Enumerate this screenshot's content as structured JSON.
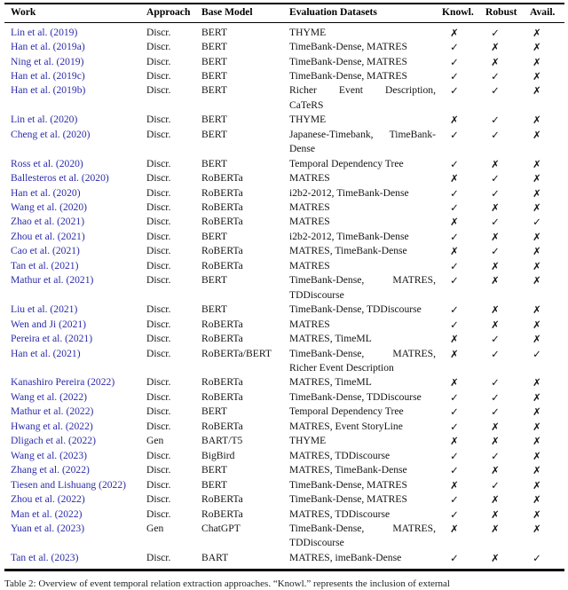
{
  "colors": {
    "link_blue": "#2b2baa"
  },
  "table": {
    "headers": [
      "Work",
      "Approach",
      "Base Model",
      "Evaluation Datasets",
      "Knowl.",
      "Robust",
      "Avail."
    ],
    "rows": [
      {
        "work": "Lin et al. (2019)",
        "approach": "Discr.",
        "base_model": "BERT",
        "dataset_lines": [
          "THYME"
        ],
        "knowl": "✗",
        "robust": "✓",
        "avail": "✗"
      },
      {
        "work": "Han et al. (2019a)",
        "approach": "Discr.",
        "base_model": "BERT",
        "dataset_lines": [
          "TimeBank-Dense, MATRES"
        ],
        "knowl": "✓",
        "robust": "✗",
        "avail": "✗"
      },
      {
        "work": "Ning et al. (2019)",
        "approach": "Discr.",
        "base_model": "BERT",
        "dataset_lines": [
          "TimeBank-Dense, MATRES"
        ],
        "knowl": "✓",
        "robust": "✗",
        "avail": "✗"
      },
      {
        "work": "Han et al. (2019c)",
        "approach": "Discr.",
        "base_model": "BERT",
        "dataset_lines": [
          "TimeBank-Dense, MATRES"
        ],
        "knowl": "✓",
        "robust": "✓",
        "avail": "✗"
      },
      {
        "work": "Han et al. (2019b)",
        "approach": "Discr.",
        "base_model": "BERT",
        "dataset_lines": [
          "Richer Event Description,",
          "CaTeRS"
        ],
        "knowl": "✓",
        "robust": "✓",
        "avail": "✗"
      },
      {
        "work": "Lin et al. (2020)",
        "approach": "Discr.",
        "base_model": "BERT",
        "dataset_lines": [
          "THYME"
        ],
        "knowl": "✗",
        "robust": "✓",
        "avail": "✗"
      },
      {
        "work": "Cheng et al. (2020)",
        "approach": "Discr.",
        "base_model": "BERT",
        "dataset_lines": [
          "Japanese-Timebank, TimeBank-",
          "Dense"
        ],
        "knowl": "✓",
        "robust": "✓",
        "avail": "✗"
      },
      {
        "work": "Ross et al. (2020)",
        "approach": "Discr.",
        "base_model": "BERT",
        "dataset_lines": [
          "Temporal Dependency Tree"
        ],
        "knowl": "✓",
        "robust": "✗",
        "avail": "✗"
      },
      {
        "work": "Ballesteros et al. (2020)",
        "approach": "Discr.",
        "base_model": "RoBERTa",
        "dataset_lines": [
          "MATRES"
        ],
        "knowl": "✗",
        "robust": "✓",
        "avail": "✗"
      },
      {
        "work": "Han et al. (2020)",
        "approach": "Discr.",
        "base_model": "RoBERTa",
        "dataset_lines": [
          "i2b2-2012, TimeBank-Dense"
        ],
        "knowl": "✓",
        "robust": "✓",
        "avail": "✗"
      },
      {
        "work": "Wang et al. (2020)",
        "approach": "Discr.",
        "base_model": "RoBERTa",
        "dataset_lines": [
          "MATRES"
        ],
        "knowl": "✓",
        "robust": "✗",
        "avail": "✗"
      },
      {
        "work": "Zhao et al. (2021)",
        "approach": "Discr.",
        "base_model": "RoBERTa",
        "dataset_lines": [
          "MATRES"
        ],
        "knowl": "✗",
        "robust": "✓",
        "avail": "✓"
      },
      {
        "work": "Zhou et al. (2021)",
        "approach": "Discr.",
        "base_model": "BERT",
        "dataset_lines": [
          "i2b2-2012, TimeBank-Dense"
        ],
        "knowl": "✓",
        "robust": "✗",
        "avail": "✗"
      },
      {
        "work": "Cao et al. (2021)",
        "approach": "Discr.",
        "base_model": "RoBERTa",
        "dataset_lines": [
          "MATRES, TimeBank-Dense"
        ],
        "knowl": "✗",
        "robust": "✓",
        "avail": "✗"
      },
      {
        "work": "Tan et al. (2021)",
        "approach": "Discr.",
        "base_model": "RoBERTa",
        "dataset_lines": [
          "MATRES"
        ],
        "knowl": "✓",
        "robust": "✗",
        "avail": "✗"
      },
      {
        "work": "Mathur et al. (2021)",
        "approach": "Discr.",
        "base_model": "BERT",
        "dataset_lines": [
          "TimeBank-Dense, MATRES,",
          "TDDiscourse"
        ],
        "knowl": "✓",
        "robust": "✗",
        "avail": "✗"
      },
      {
        "work": "Liu et al. (2021)",
        "approach": "Discr.",
        "base_model": "BERT",
        "dataset_lines": [
          "TimeBank-Dense, TDDiscourse"
        ],
        "knowl": "✓",
        "robust": "✗",
        "avail": "✗"
      },
      {
        "work": "Wen and Ji (2021)",
        "approach": "Discr.",
        "base_model": "RoBERTa",
        "dataset_lines": [
          "MATRES"
        ],
        "knowl": "✓",
        "robust": "✗",
        "avail": "✗"
      },
      {
        "work": "Pereira et al. (2021)",
        "approach": "Discr.",
        "base_model": "RoBERTa",
        "dataset_lines": [
          "MATRES, TimeML"
        ],
        "knowl": "✗",
        "robust": "✓",
        "avail": "✗"
      },
      {
        "work": "Han et al. (2021)",
        "approach": "Discr.",
        "base_model": "RoBERTa/BERT",
        "dataset_lines": [
          "TimeBank-Dense, MATRES,",
          "Richer Event Description"
        ],
        "knowl": "✗",
        "robust": "✓",
        "avail": "✓"
      },
      {
        "work": "Kanashiro Pereira (2022)",
        "approach": "Discr.",
        "base_model": "RoBERTa",
        "dataset_lines": [
          "MATRES, TimeML"
        ],
        "knowl": "✗",
        "robust": "✓",
        "avail": "✗"
      },
      {
        "work": "Wang et al. (2022)",
        "approach": "Discr.",
        "base_model": "RoBERTa",
        "dataset_lines": [
          "TimeBank-Dense, TDDiscourse"
        ],
        "knowl": "✓",
        "robust": "✓",
        "avail": "✗"
      },
      {
        "work": "Mathur et al. (2022)",
        "approach": "Discr.",
        "base_model": "BERT",
        "dataset_lines": [
          "Temporal Dependency Tree"
        ],
        "knowl": "✓",
        "robust": "✓",
        "avail": "✗"
      },
      {
        "work": "Hwang et al. (2022)",
        "approach": "Discr.",
        "base_model": "RoBERTa",
        "dataset_lines": [
          "MATRES, Event StoryLine"
        ],
        "knowl": "✓",
        "robust": "✗",
        "avail": "✗"
      },
      {
        "work": "Dligach et al. (2022)",
        "approach": "Gen",
        "base_model": "BART/T5",
        "dataset_lines": [
          "THYME"
        ],
        "knowl": "✗",
        "robust": "✗",
        "avail": "✗"
      },
      {
        "work": "Wang et al. (2023)",
        "approach": "Discr.",
        "base_model": "BigBird",
        "dataset_lines": [
          "MATRES, TDDiscourse"
        ],
        "knowl": "✓",
        "robust": "✓",
        "avail": "✗"
      },
      {
        "work": "Zhang et al. (2022)",
        "approach": "Discr.",
        "base_model": "BERT",
        "dataset_lines": [
          "MATRES, TimeBank-Dense"
        ],
        "knowl": "✓",
        "robust": "✗",
        "avail": "✗"
      },
      {
        "work": "Tiesen and Lishuang (2022)",
        "approach": "Discr.",
        "base_model": "BERT",
        "dataset_lines": [
          "TimeBank-Dense, MATRES"
        ],
        "knowl": "✗",
        "robust": "✓",
        "avail": "✗"
      },
      {
        "work": "Zhou et al. (2022)",
        "approach": "Discr.",
        "base_model": "RoBERTa",
        "dataset_lines": [
          "TimeBank-Dense, MATRES"
        ],
        "knowl": "✓",
        "robust": "✗",
        "avail": "✗"
      },
      {
        "work": "Man et al. (2022)",
        "approach": "Discr.",
        "base_model": "RoBERTa",
        "dataset_lines": [
          "MATRES, TDDiscourse"
        ],
        "knowl": "✓",
        "robust": "✗",
        "avail": "✗"
      },
      {
        "work": "Yuan et al. (2023)",
        "approach": "Gen",
        "base_model": "ChatGPT",
        "dataset_lines": [
          "TimeBank-Dense, MATRES,",
          "TDDiscourse"
        ],
        "knowl": "✗",
        "robust": "✗",
        "avail": "✗"
      },
      {
        "work": "Tan et al. (2023)",
        "approach": "Discr.",
        "base_model": "BART",
        "dataset_lines": [
          "MATRES, imeBank-Dense"
        ],
        "knowl": "✓",
        "robust": "✗",
        "avail": "✓"
      }
    ]
  },
  "caption": {
    "text": "Table 2: Overview of event temporal relation extraction approaches. “Knowl.” represents the inclusion of external"
  }
}
